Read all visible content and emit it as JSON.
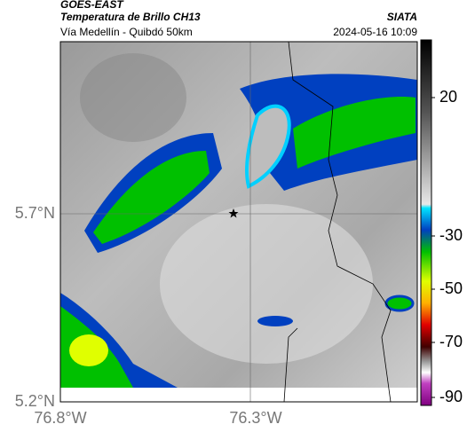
{
  "header": {
    "satellite": "GOES-EAST",
    "product": "Temperatura de Brillo CH13",
    "region": "Vía Medellín - Quibdó 50km",
    "source": "SIATA",
    "timestamp": "2024-05-16 10:09"
  },
  "map": {
    "lat_labels": [
      "5.7°N",
      "5.2°N"
    ],
    "lon_labels": [
      "76.8°W",
      "76.3°W"
    ]
  },
  "colorbar": {
    "labels": [
      "20",
      "-30",
      "-50",
      "-70",
      "-90"
    ]
  }
}
